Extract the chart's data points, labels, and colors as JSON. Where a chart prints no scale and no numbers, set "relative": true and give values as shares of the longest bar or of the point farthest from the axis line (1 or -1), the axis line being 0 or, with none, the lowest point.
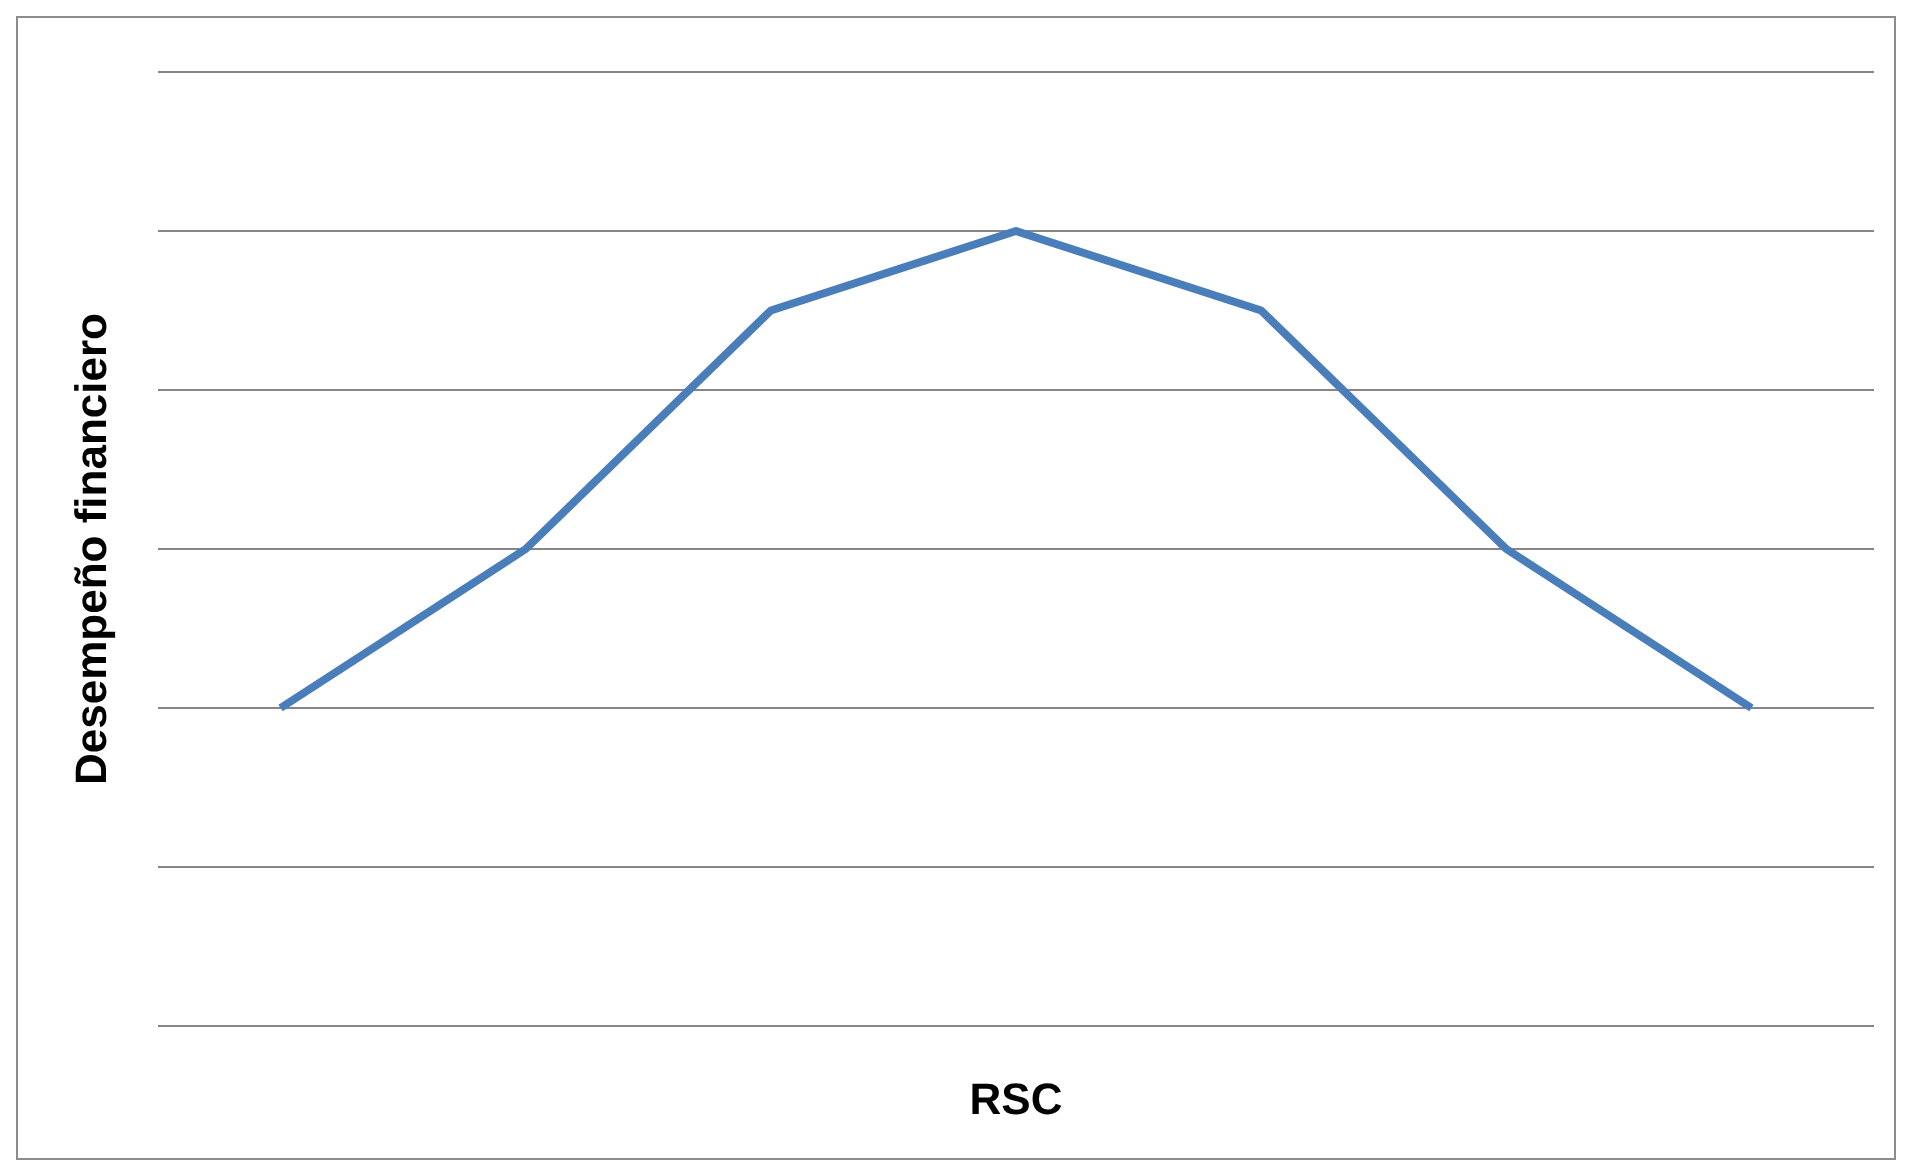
{
  "chart_data": {
    "type": "line",
    "relative": true,
    "xlabel": "RSC",
    "ylabel": "Desempeño financiero",
    "categories": [
      null,
      null,
      null,
      null,
      null,
      null,
      null
    ],
    "series": [
      {
        "color": "#4a7ebb",
        "values": [
          0.4,
          0.6,
          0.9,
          1,
          0.9,
          0.6,
          0.4
        ]
      }
    ],
    "grid": "y",
    "legend": false,
    "marker": "none",
    "line_style": "solid"
  }
}
